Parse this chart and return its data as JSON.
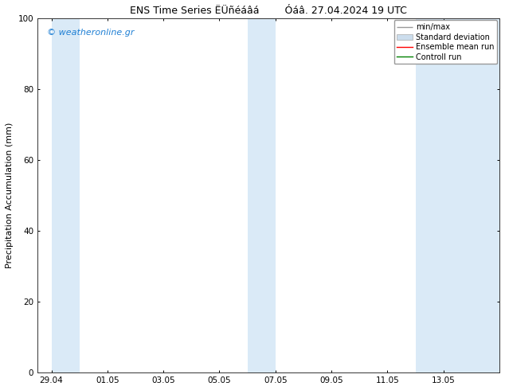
{
  "title_left": "ENS Time Series ËÜñéáâá",
  "title_right": "Óáâ. 27.04.2024 19 UTC",
  "ylabel": "Precipitation Accumulation (mm)",
  "ylim": [
    0,
    100
  ],
  "yticks": [
    0,
    20,
    40,
    60,
    80,
    100
  ],
  "xtick_labels": [
    "29.04",
    "01.05",
    "03.05",
    "05.05",
    "07.05",
    "09.05",
    "11.05",
    "13.05"
  ],
  "shaded_bands": [
    {
      "x_start": 0.0,
      "x_end": 1.0
    },
    {
      "x_start": 7.0,
      "x_end": 8.0
    },
    {
      "x_start": 13.0,
      "x_end": 16.0
    }
  ],
  "band_color": "#daeaf7",
  "watermark_text": "© weatheronline.gr",
  "watermark_color": "#1e7fd4",
  "legend_labels": [
    "min/max",
    "Standard deviation",
    "Ensemble mean run",
    "Controll run"
  ],
  "legend_colors": [
    "#aaaaaa",
    "#ccdded",
    "red",
    "green"
  ],
  "bg_color": "#ffffff",
  "title_fontsize": 9,
  "label_fontsize": 8,
  "tick_fontsize": 7.5,
  "legend_fontsize": 7,
  "watermark_fontsize": 8,
  "x_min": -0.5,
  "x_max": 16.0,
  "num_xticks": 8,
  "xtick_spacing": 2.0
}
